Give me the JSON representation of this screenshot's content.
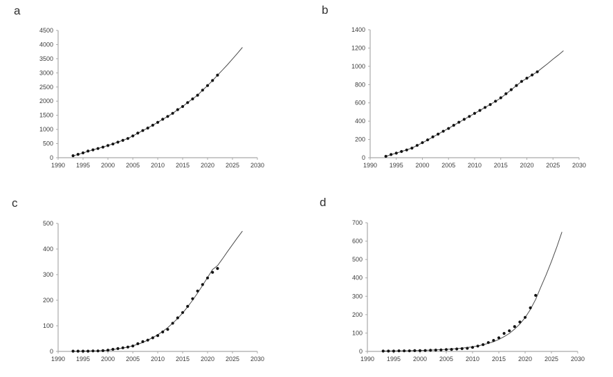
{
  "figure": {
    "background": "#ffffff",
    "axis_color": "#a9a9a9",
    "tick_label_color": "#3c3c3c",
    "point_color": "#141414",
    "fit_line_color": "#4a4a4a"
  },
  "chart_data": [
    {
      "type": "scatter",
      "panel_label": "a",
      "title": "",
      "xlabel": "",
      "ylabel": "",
      "xlim": [
        1990,
        2030
      ],
      "ylim": [
        0,
        4500
      ],
      "xticks": [
        1990,
        1995,
        2000,
        2005,
        2010,
        2015,
        2020,
        2025,
        2030
      ],
      "yticks": [
        0,
        500,
        1000,
        1500,
        2000,
        2500,
        3000,
        3500,
        4000,
        4500
      ],
      "grid": false,
      "legend": "none",
      "x": [
        1993,
        1994,
        1995,
        1996,
        1997,
        1998,
        1999,
        2000,
        2001,
        2002,
        2003,
        2004,
        2005,
        2006,
        2007,
        2008,
        2009,
        2010,
        2011,
        2012,
        2013,
        2014,
        2015,
        2016,
        2017,
        2018,
        2019,
        2020,
        2021,
        2022
      ],
      "values": [
        70,
        120,
        170,
        235,
        280,
        325,
        375,
        430,
        485,
        550,
        615,
        680,
        770,
        870,
        960,
        1050,
        1150,
        1250,
        1360,
        1460,
        1570,
        1700,
        1810,
        1950,
        2080,
        2210,
        2390,
        2550,
        2730,
        2920
      ],
      "fit_x": [
        1993,
        1994,
        1995,
        1996,
        1997,
        1998,
        1999,
        2000,
        2001,
        2002,
        2003,
        2004,
        2005,
        2006,
        2007,
        2008,
        2009,
        2010,
        2011,
        2012,
        2013,
        2014,
        2015,
        2016,
        2017,
        2018,
        2019,
        2020,
        2021,
        2022,
        2023,
        2024,
        2025,
        2026,
        2027
      ],
      "fit_values": [
        65,
        115,
        168,
        225,
        278,
        328,
        378,
        432,
        488,
        552,
        616,
        682,
        768,
        866,
        958,
        1048,
        1150,
        1252,
        1358,
        1460,
        1570,
        1698,
        1812,
        1948,
        2082,
        2212,
        2388,
        2552,
        2728,
        2918,
        3100,
        3290,
        3490,
        3690,
        3900
      ]
    },
    {
      "type": "scatter",
      "panel_label": "b",
      "title": "",
      "xlabel": "",
      "ylabel": "",
      "xlim": [
        1990,
        2030
      ],
      "ylim": [
        0,
        1400
      ],
      "xticks": [
        1990,
        1995,
        2000,
        2005,
        2010,
        2015,
        2020,
        2025,
        2030
      ],
      "yticks": [
        0,
        200,
        400,
        600,
        800,
        1000,
        1200,
        1400
      ],
      "grid": false,
      "legend": "none",
      "x": [
        1993,
        1994,
        1995,
        1996,
        1997,
        1998,
        1999,
        2000,
        2001,
        2002,
        2003,
        2004,
        2005,
        2006,
        2007,
        2008,
        2009,
        2010,
        2011,
        2012,
        2013,
        2014,
        2015,
        2016,
        2017,
        2018,
        2019,
        2020,
        2021,
        2022
      ],
      "values": [
        15,
        35,
        50,
        68,
        85,
        105,
        135,
        165,
        195,
        228,
        258,
        290,
        320,
        355,
        388,
        420,
        452,
        485,
        518,
        550,
        582,
        618,
        655,
        700,
        745,
        790,
        835,
        870,
        905,
        940
      ],
      "fit_x": [
        1993,
        1994,
        1995,
        1996,
        1997,
        1998,
        1999,
        2000,
        2001,
        2002,
        2003,
        2004,
        2005,
        2006,
        2007,
        2008,
        2009,
        2010,
        2011,
        2012,
        2013,
        2014,
        2015,
        2016,
        2017,
        2018,
        2019,
        2020,
        2021,
        2022,
        2023,
        2024,
        2025,
        2026,
        2027
      ],
      "fit_values": [
        15,
        33,
        50,
        68,
        86,
        106,
        134,
        164,
        194,
        226,
        258,
        290,
        321,
        354,
        387,
        420,
        452,
        485,
        517,
        550,
        583,
        617,
        653,
        698,
        743,
        789,
        834,
        869,
        905,
        940,
        985,
        1030,
        1078,
        1122,
        1170
      ]
    },
    {
      "type": "scatter",
      "panel_label": "c",
      "title": "",
      "xlabel": "",
      "ylabel": "",
      "xlim": [
        1990,
        2030
      ],
      "ylim": [
        0,
        500
      ],
      "xticks": [
        1990,
        1995,
        2000,
        2005,
        2010,
        2015,
        2020,
        2025,
        2030
      ],
      "yticks": [
        0,
        100,
        200,
        300,
        400,
        500
      ],
      "grid": false,
      "legend": "none",
      "x": [
        1993,
        1994,
        1995,
        1996,
        1997,
        1998,
        1999,
        2000,
        2001,
        2002,
        2003,
        2004,
        2005,
        2006,
        2007,
        2008,
        2009,
        2010,
        2011,
        2012,
        2013,
        2014,
        2015,
        2016,
        2017,
        2018,
        2019,
        2020,
        2021,
        2022
      ],
      "values": [
        1,
        1,
        1,
        1,
        2,
        2,
        3,
        5,
        8,
        11,
        14,
        17,
        21,
        30,
        38,
        44,
        53,
        62,
        76,
        86,
        110,
        131,
        152,
        176,
        206,
        236,
        261,
        287,
        309,
        324
      ],
      "fit_x": [
        1993,
        1994,
        1995,
        1996,
        1997,
        1998,
        1999,
        2000,
        2001,
        2002,
        2003,
        2004,
        2005,
        2006,
        2007,
        2008,
        2009,
        2010,
        2011,
        2012,
        2013,
        2014,
        2015,
        2016,
        2017,
        2018,
        2019,
        2020,
        2021,
        2022,
        2023,
        2024,
        2025,
        2026,
        2027
      ],
      "fit_values": [
        0,
        0.5,
        1,
        1.5,
        2,
        2.5,
        3.5,
        5,
        7,
        10,
        13,
        17,
        22,
        28,
        35,
        44,
        54,
        65,
        78,
        93,
        110,
        129,
        150,
        174,
        200,
        228,
        258,
        289,
        320,
        335,
        362,
        390,
        417,
        444,
        470
      ]
    },
    {
      "type": "scatter",
      "panel_label": "d",
      "title": "",
      "xlabel": "",
      "ylabel": "",
      "xlim": [
        1990,
        2030
      ],
      "ylim": [
        0,
        700
      ],
      "xticks": [
        1990,
        1995,
        2000,
        2005,
        2010,
        2015,
        2020,
        2025,
        2030
      ],
      "yticks": [
        0,
        100,
        200,
        300,
        400,
        500,
        600,
        700
      ],
      "grid": false,
      "legend": "none",
      "x": [
        1993,
        1994,
        1995,
        1996,
        1997,
        1998,
        1999,
        2000,
        2001,
        2002,
        2003,
        2004,
        2005,
        2006,
        2007,
        2008,
        2009,
        2010,
        2011,
        2012,
        2013,
        2014,
        2015,
        2016,
        2017,
        2018,
        2019,
        2020,
        2021,
        2022
      ],
      "values": [
        2,
        2,
        2,
        3,
        3,
        3,
        4,
        4,
        5,
        6,
        7,
        8,
        10,
        11,
        13,
        15,
        17,
        22,
        29,
        37,
        48,
        60,
        74,
        98,
        112,
        135,
        160,
        185,
        237,
        305
      ],
      "fit_x": [
        1993,
        1994,
        1995,
        1996,
        1997,
        1998,
        1999,
        2000,
        2001,
        2002,
        2003,
        2004,
        2005,
        2006,
        2007,
        2008,
        2009,
        2010,
        2011,
        2012,
        2013,
        2014,
        2015,
        2016,
        2017,
        2018,
        2019,
        2020,
        2021,
        2022,
        2023,
        2024,
        2025,
        2026,
        2027
      ],
      "fit_values": [
        2,
        2.3,
        2.6,
        3,
        3.4,
        3.9,
        4.5,
        5.2,
        6,
        7,
        8.1,
        9.4,
        11,
        13,
        15,
        18,
        21,
        25,
        30,
        36,
        44,
        53,
        65,
        80,
        98,
        121,
        149,
        184,
        228,
        283,
        351,
        417,
        489,
        566,
        650
      ]
    }
  ]
}
